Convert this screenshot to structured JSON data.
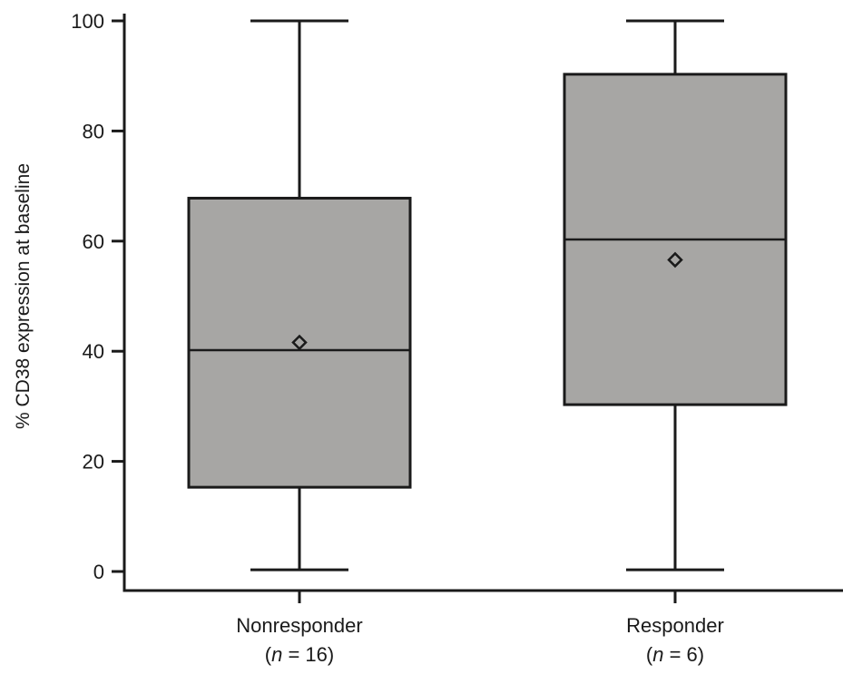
{
  "chart_data": {
    "type": "box",
    "ylabel": "% CD38 expression at baseline",
    "ylim": [
      0,
      100
    ],
    "yticks": [
      "0",
      "20",
      "40",
      "60",
      "80",
      "100"
    ],
    "grid": false,
    "colors": {
      "box_fill": "#a7a6a4",
      "stroke": "#1a1a1a"
    },
    "groups": [
      {
        "name": "Nonresponder",
        "n_prefix": "(",
        "n_symbol": "n",
        "n_suffix": " = 16)",
        "min": 0.3,
        "q1": 15.3,
        "median": 40.2,
        "q3": 67.8,
        "max": 100,
        "mean": 41.6
      },
      {
        "name": "Responder",
        "n_prefix": "(",
        "n_symbol": "n",
        "n_suffix": " = 6)",
        "min": 0.3,
        "q1": 30.3,
        "median": 60.3,
        "q3": 90.3,
        "max": 100,
        "mean": 56.6
      }
    ]
  }
}
